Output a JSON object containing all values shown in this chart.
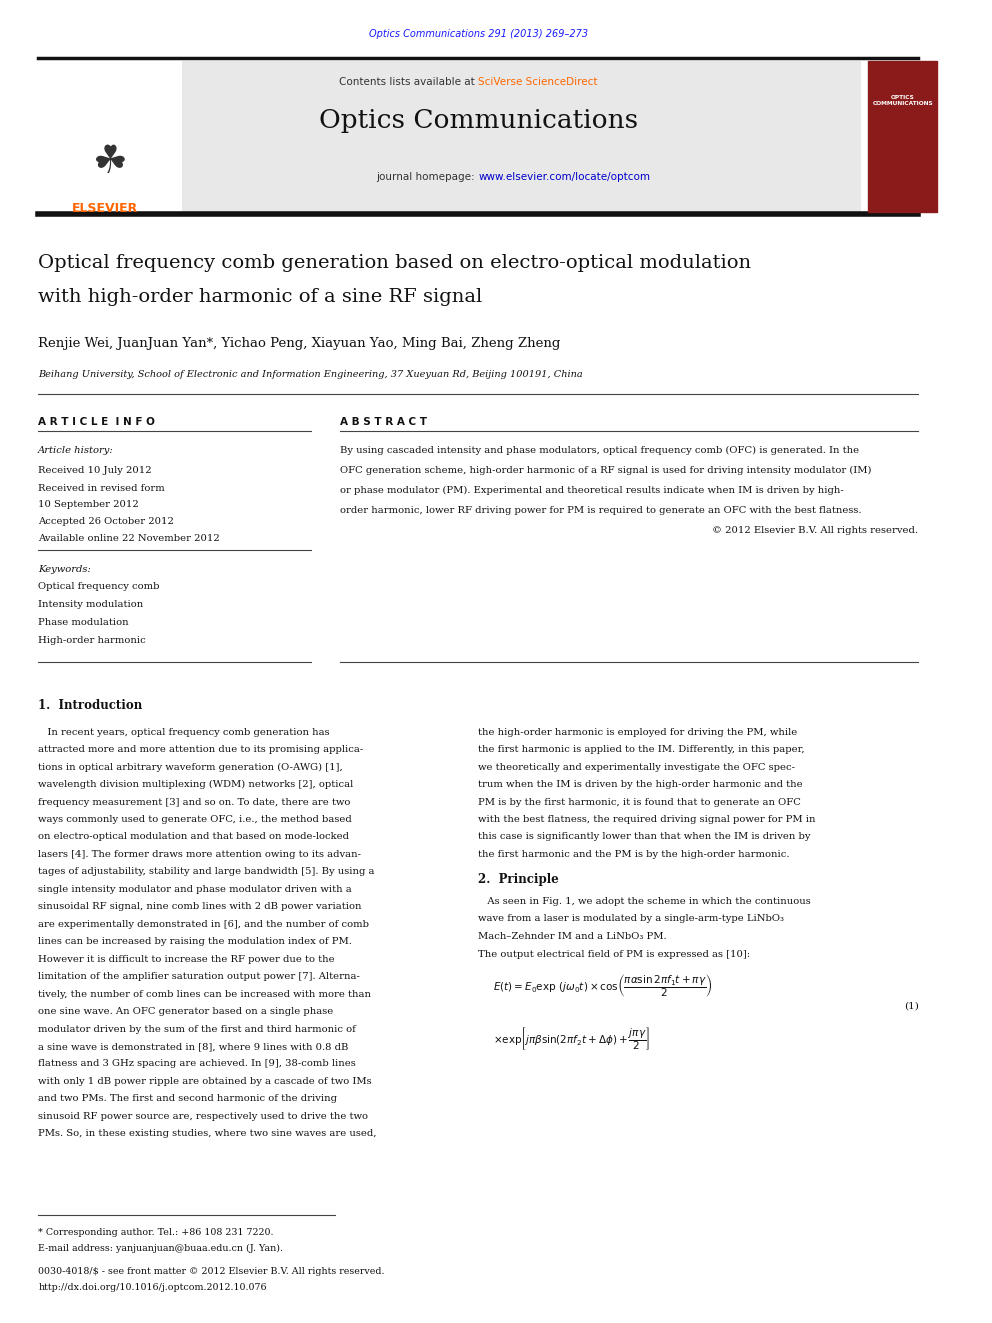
{
  "page_width": 9.92,
  "page_height": 13.23,
  "bg_color": "#ffffff",
  "header_journal_text": "Optics Communications 291 (2013) 269–273",
  "header_journal_color": "#1a1aff",
  "header_bar_color": "#111111",
  "banner_bg": "#e8e8e8",
  "banner_contents": "Contents lists available at ",
  "banner_sciverse": "SciVerse ScienceDirect",
  "banner_sciverse_color": "#ff6600",
  "banner_journal_title": "Optics Communications",
  "banner_url_prefix": "journal homepage: ",
  "banner_url": "www.elsevier.com/locate/optcom",
  "banner_url_color": "#0000cc",
  "elsevier_color": "#ff6600",
  "paper_title_line1": "Optical frequency comb generation based on electro-optical modulation",
  "paper_title_line2": "with high-order harmonic of a sine RF signal",
  "authors": "Renjie Wei, JuanJuan Yan*, Yichao Peng, Xiayuan Yao, Ming Bai, Zheng Zheng",
  "affiliation": "Beihang University, School of Electronic and Information Engineering, 37 Xueyuan Rd, Beijing 100191, China",
  "article_info_label": "A R T I C L E  I N F O",
  "abstract_label": "A B S T R A C T",
  "article_history_label": "Article history:",
  "received1": "Received 10 July 2012",
  "received2": "Received in revised form",
  "received2b": "10 September 2012",
  "accepted": "Accepted 26 October 2012",
  "available": "Available online 22 November 2012",
  "keywords_label": "Keywords:",
  "keywords": [
    "Optical frequency comb",
    "Intensity modulation",
    "Phase modulation",
    "High-order harmonic"
  ],
  "abstract_lines": [
    "By using cascaded intensity and phase modulators, optical frequency comb (OFC) is generated. In the",
    "OFC generation scheme, high-order harmonic of a RF signal is used for driving intensity modulator (IM)",
    "or phase modulator (PM). Experimental and theoretical results indicate when IM is driven by high-",
    "order harmonic, lower RF driving power for PM is required to generate an OFC with the best flatness.",
    "© 2012 Elsevier B.V. All rights reserved."
  ],
  "section1_title": "1.  Introduction",
  "left_col_lines": [
    "   In recent years, optical frequency comb generation has",
    "attracted more and more attention due to its promising applica-",
    "tions in optical arbitrary waveform generation (O-AWG) [1],",
    "wavelength division multiplexing (WDM) networks [2], optical",
    "frequency measurement [3] and so on. To date, there are two",
    "ways commonly used to generate OFC, i.e., the method based",
    "on electro-optical modulation and that based on mode-locked",
    "lasers [4]. The former draws more attention owing to its advan-",
    "tages of adjustability, stability and large bandwidth [5]. By using a",
    "single intensity modulator and phase modulator driven with a",
    "sinusoidal RF signal, nine comb lines with 2 dB power variation",
    "are experimentally demonstrated in [6], and the number of comb",
    "lines can be increased by raising the modulation index of PM.",
    "However it is difficult to increase the RF power due to the",
    "limitation of the amplifier saturation output power [7]. Alterna-",
    "tively, the number of comb lines can be increased with more than",
    "one sine wave. An OFC generator based on a single phase",
    "modulator driven by the sum of the first and third harmonic of",
    "a sine wave is demonstrated in [8], where 9 lines with 0.8 dB",
    "flatness and 3 GHz spacing are achieved. In [9], 38-comb lines",
    "with only 1 dB power ripple are obtained by a cascade of two IMs",
    "and two PMs. The first and second harmonic of the driving",
    "sinusoid RF power source are, respectively used to drive the two",
    "PMs. So, in these existing studies, where two sine waves are used,"
  ],
  "right_col_lines_sec1": [
    "the high-order harmonic is employed for driving the PM, while",
    "the first harmonic is applied to the IM. Differently, in this paper,",
    "we theoretically and experimentally investigate the OFC spec-",
    "trum when the IM is driven by the high-order harmonic and the",
    "PM is by the first harmonic, it is found that to generate an OFC",
    "with the best flatness, the required driving signal power for PM in",
    "this case is significantly lower than that when the IM is driven by",
    "the first harmonic and the PM is by the high-order harmonic."
  ],
  "section2_title": "2.  Principle",
  "sec2_lines": [
    "   As seen in Fig. 1, we adopt the scheme in which the continuous",
    "wave from a laser is modulated by a single-arm-type LiNbO₃",
    "Mach–Zehnder IM and a LiNbO₃ PM."
  ],
  "section2_eq_label": "The output electrical field of PM is expressed as [10]:",
  "footnote_star": "* Corresponding author. Tel.: +86 108 231 7220.",
  "footnote_email": "E-mail address: yanjuanjuan@buaa.edu.cn (J. Yan).",
  "footer_line1": "0030-4018/$ - see front matter © 2012 Elsevier B.V. All rights reserved.",
  "footer_line2": "http://dx.doi.org/10.1016/j.optcom.2012.10.076"
}
